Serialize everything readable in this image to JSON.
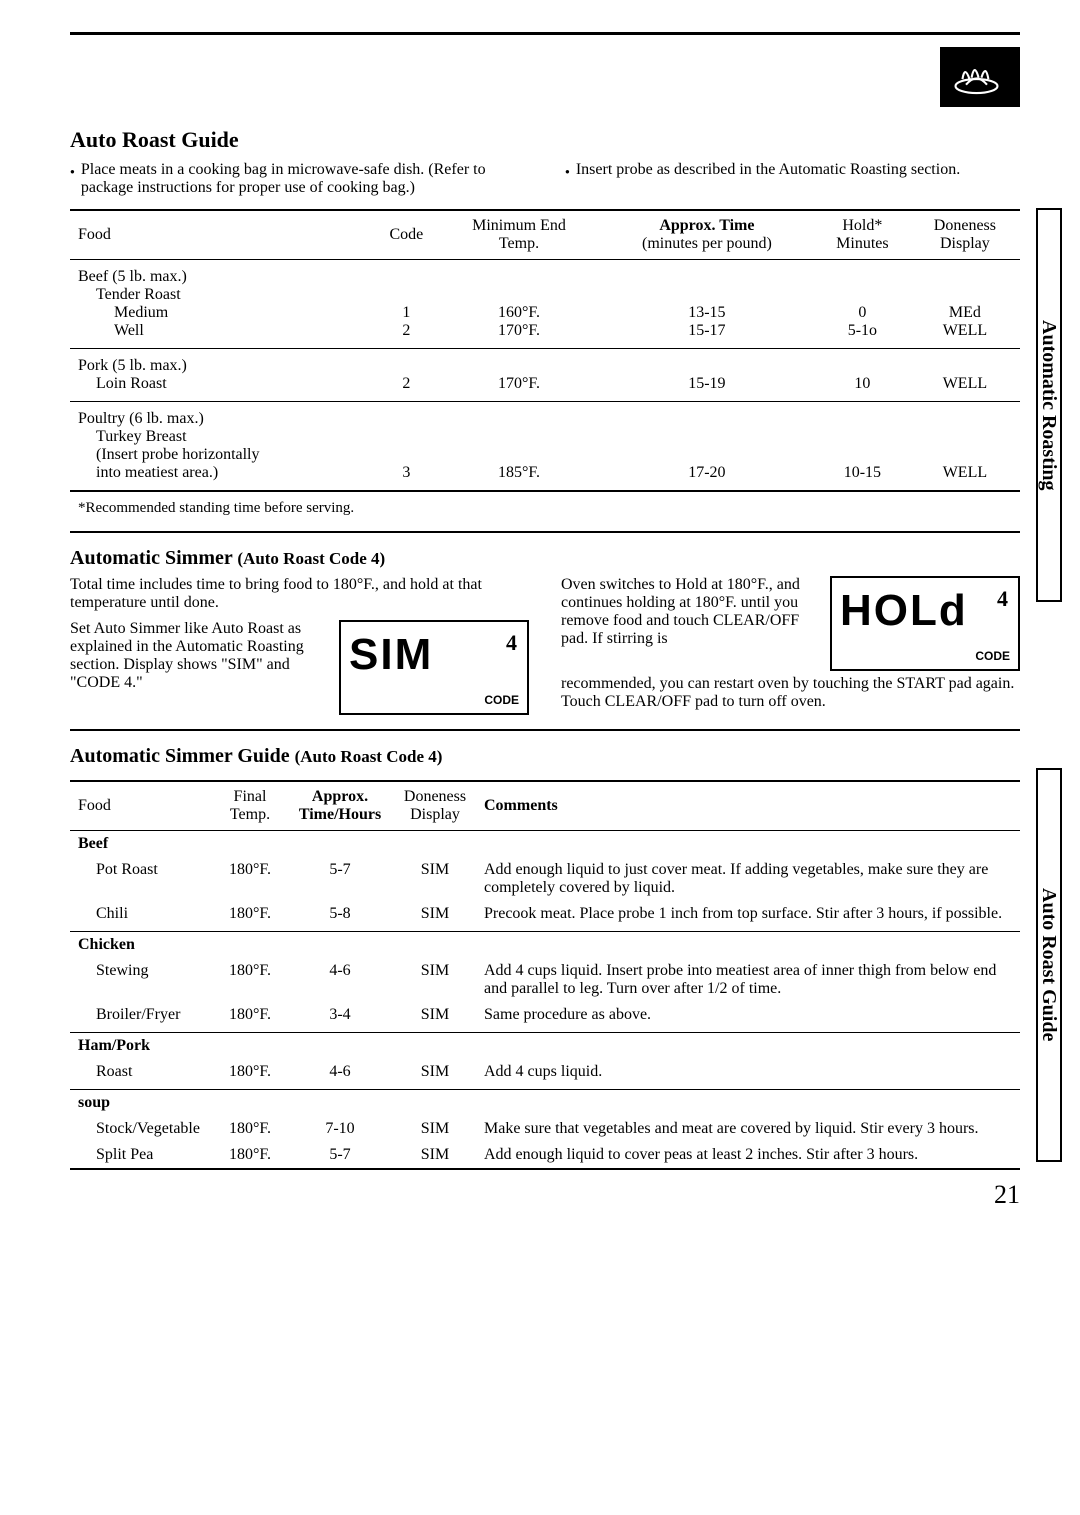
{
  "page": {
    "title1": "Auto Roast Guide",
    "intro_left": "Place meats in a cooking bag in microwave-safe dish. (Refer to package instructions for proper use of cooking bag.)",
    "intro_right": "Insert probe as described in the Automatic Roasting section.",
    "footnote": "*Recommended standing time before serving.",
    "title2": "Automatic Simmer",
    "title2_paren": "(Auto Roast Code 4)",
    "simmer_p1": "Total time includes time to bring food to 180°F., and hold at that temperature until done.",
    "simmer_p2": "Set Auto Simmer like Auto Roast as explained in the Automatic Roasting section. Display shows \"SIM\" and \"CODE 4.\"",
    "simmer_p3": "Oven switches to Hold at 180°F., and continues holding at 180°F. until you remove food and touch CLEAR/OFF pad. If stirring is",
    "simmer_p4": "recommended, you can restart oven by touching the START pad again. Touch CLEAR/OFF pad to turn off oven.",
    "lcd1": "SIM",
    "lcd1_tr": "4",
    "lcd1_code": "CODE",
    "lcd2": "HOLd",
    "lcd2_tr": "4",
    "lcd2_code": "CODE",
    "title3": "Automatic Simmer Guide",
    "title3_paren": "(Auto Roast Code 4)",
    "side1": "Automatic Roasting",
    "side2": "Auto Roast Guide",
    "pagenum": "21"
  },
  "roast": {
    "headers": {
      "food": "Food",
      "code": "Code",
      "temp1": "Minimum End",
      "temp2": "Temp.",
      "time1": "Approx. Time",
      "time2": "(minutes per pound)",
      "hold1": "Hold*",
      "hold2": "Minutes",
      "done1": "Doneness",
      "done2": "Display"
    },
    "rows": [
      {
        "food": "Beef (5 lb. max.)\n  Tender Roast\n    Medium\n    Well",
        "code": "1\n2",
        "temp": "160°F.\n170°F.",
        "time": "13-15\n15-17",
        "hold": "0\n5-1o",
        "done": "MEd\nWELL"
      },
      {
        "food": "Pork (5 lb. max.)\n  Loin Roast",
        "code": "2",
        "temp": "170°F.",
        "time": "15-19",
        "hold": "10",
        "done": "WELL"
      },
      {
        "food": "Poultry (6 lb. max.)\n  Turkey Breast\n  (Insert probe horizontally\n  into meatiest area.)",
        "code": "3",
        "temp": "185°F.",
        "time": "17-20",
        "hold": "10-15",
        "done": "WELL"
      }
    ]
  },
  "simmer": {
    "headers": {
      "food": "Food",
      "temp1": "Final",
      "temp2": "Temp.",
      "time1": "Approx.",
      "time2": "Time/Hours",
      "done1": "Doneness",
      "done2": "Display",
      "comments": "Comments"
    },
    "groups": [
      {
        "title": "Beef",
        "rows": [
          {
            "food": "Pot Roast",
            "temp": "180°F.",
            "time": "5-7",
            "done": "SIM",
            "comment": "Add enough liquid to just cover meat. If adding vegetables, make sure they are completely covered by liquid."
          },
          {
            "food": "Chili",
            "temp": "180°F.",
            "time": "5-8",
            "done": "SIM",
            "comment": "Precook meat. Place probe 1 inch from top surface. Stir after 3 hours, if possible."
          }
        ]
      },
      {
        "title": "Chicken",
        "rows": [
          {
            "food": "Stewing",
            "temp": "180°F.",
            "time": "4-6",
            "done": "SIM",
            "comment": "Add 4 cups liquid. Insert probe into meatiest area of inner thigh from below end and parallel to leg. Turn over after 1/2 of time."
          },
          {
            "food": "Broiler/Fryer",
            "temp": "180°F.",
            "time": "3-4",
            "done": "SIM",
            "comment": "Same procedure as above."
          }
        ]
      },
      {
        "title": "Ham/Pork",
        "rows": [
          {
            "food": "Roast",
            "temp": "180°F.",
            "time": "4-6",
            "done": "SIM",
            "comment": "Add 4 cups liquid."
          }
        ]
      },
      {
        "title": "soup",
        "rows": [
          {
            "food": "Stock/Vegetable",
            "temp": "180°F.",
            "time": "7-10",
            "done": "SIM",
            "comment": "Make sure that vegetables and meat are covered by liquid. Stir every 3 hours."
          },
          {
            "food": "Split Pea",
            "temp": "180°F.",
            "time": "5-7",
            "done": "SIM",
            "comment": "Add enough liquid to cover peas at least 2 inches. Stir after 3 hours."
          }
        ]
      }
    ]
  }
}
